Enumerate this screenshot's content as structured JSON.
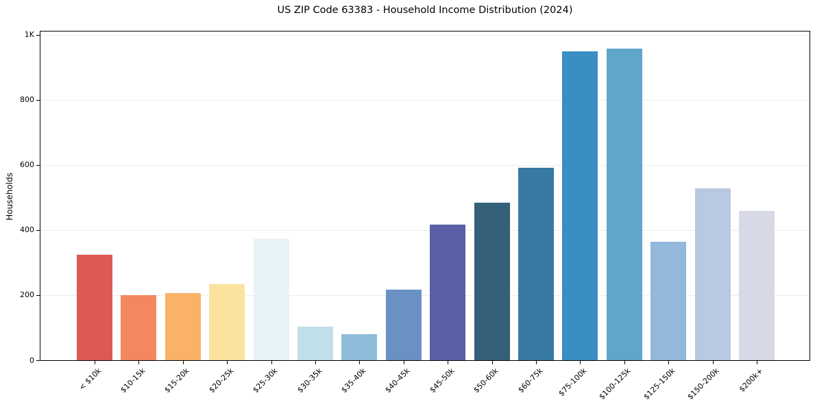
{
  "chart_data": {
    "type": "bar",
    "title": "US ZIP Code 63383 - Household Income Distribution (2024)",
    "xlabel": "",
    "ylabel": "Households",
    "categories": [
      "< $10k",
      "$10-15k",
      "$15-20k",
      "$20-25k",
      "$25-30k",
      "$30-35k",
      "$35-40k",
      "$40-45k",
      "$45-50k",
      "$50-60k",
      "$60-75k",
      "$75-100k",
      "$100-125k",
      "$125-150k",
      "$150-200k",
      "$200k+"
    ],
    "values": [
      325,
      200,
      207,
      233,
      373,
      104,
      79,
      217,
      417,
      484,
      592,
      948,
      958,
      364,
      529,
      458
    ],
    "bar_colors": [
      "#dc5a53",
      "#f4875f",
      "#f9b268",
      "#fbe39d",
      "#e7f2f6",
      "#c0dfe9",
      "#8fbcda",
      "#6a90c4",
      "#5a5fa8",
      "#35607a",
      "#387aa3",
      "#3a8ec4",
      "#5fa6c9",
      "#93b8d9",
      "#bac9e2",
      "#d8d9e7"
    ],
    "ylim": [
      0,
      1010
    ],
    "yticks": [
      {
        "value": 0,
        "label": "0"
      },
      {
        "value": 200,
        "label": "200"
      },
      {
        "value": 400,
        "label": "400"
      },
      {
        "value": 600,
        "label": "600"
      },
      {
        "value": 800,
        "label": "800"
      },
      {
        "value": 1000,
        "label": "1K"
      }
    ],
    "grid": "horizontal",
    "grid_color": "#ececec",
    "spine_color": "#000000",
    "text_color": "#000000",
    "legend": "none"
  }
}
